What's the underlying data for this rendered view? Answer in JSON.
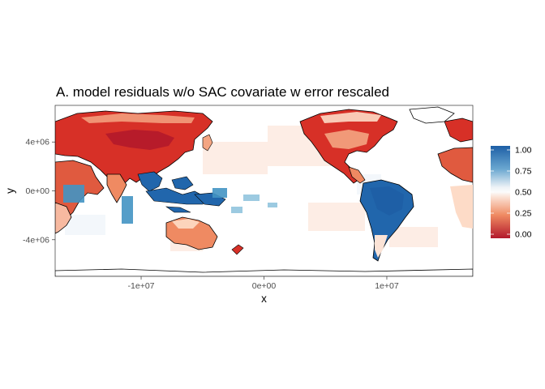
{
  "title": "A. model residuals w/o SAC covariate w error rescaled",
  "axes": {
    "x_title": "x",
    "y_title": "y",
    "x_ticks": [
      {
        "value": -10000000,
        "label": "-1e+07"
      },
      {
        "value": 0,
        "label": "0e+00"
      },
      {
        "value": 10000000,
        "label": "1e+07"
      }
    ],
    "y_ticks": [
      {
        "value": 4000000,
        "label": "4e+06"
      },
      {
        "value": 0,
        "label": "0e+00"
      },
      {
        "value": -4000000,
        "label": "-4e+06"
      }
    ],
    "x_range": [
      -17000000,
      17000000
    ],
    "y_range": [
      -7000000,
      7000000
    ]
  },
  "legend": {
    "labels": [
      "1.00",
      "0.75",
      "0.50",
      "0.25",
      "0.00"
    ],
    "values": [
      1.0,
      0.75,
      0.5,
      0.25,
      0.0
    ],
    "colors": [
      "#2166ac",
      "#6aa7d0",
      "#f7f7f7",
      "#f4a582",
      "#b2182b"
    ],
    "position": "right"
  },
  "map": {
    "projection": "Pacific-centered equal-area world map",
    "fill_scale": "diverging RdBu, 0 to 1",
    "regions": [
      {
        "name": "Western Asia / Central Asia",
        "level": 0.12
      },
      {
        "name": "Siberia",
        "level": 0.35
      },
      {
        "name": "East Asia",
        "level": 0.25
      },
      {
        "name": "Indonesia / Philippines",
        "level": 0.92
      },
      {
        "name": "Australia",
        "level": 0.2
      },
      {
        "name": "North America",
        "level": 0.18
      },
      {
        "name": "Amazon",
        "level": 0.9
      },
      {
        "name": "Southern South America",
        "level": 0.4
      },
      {
        "name": "Africa (east edge)",
        "level": 0.2
      },
      {
        "name": "Oceans",
        "level": 0.5
      }
    ]
  }
}
